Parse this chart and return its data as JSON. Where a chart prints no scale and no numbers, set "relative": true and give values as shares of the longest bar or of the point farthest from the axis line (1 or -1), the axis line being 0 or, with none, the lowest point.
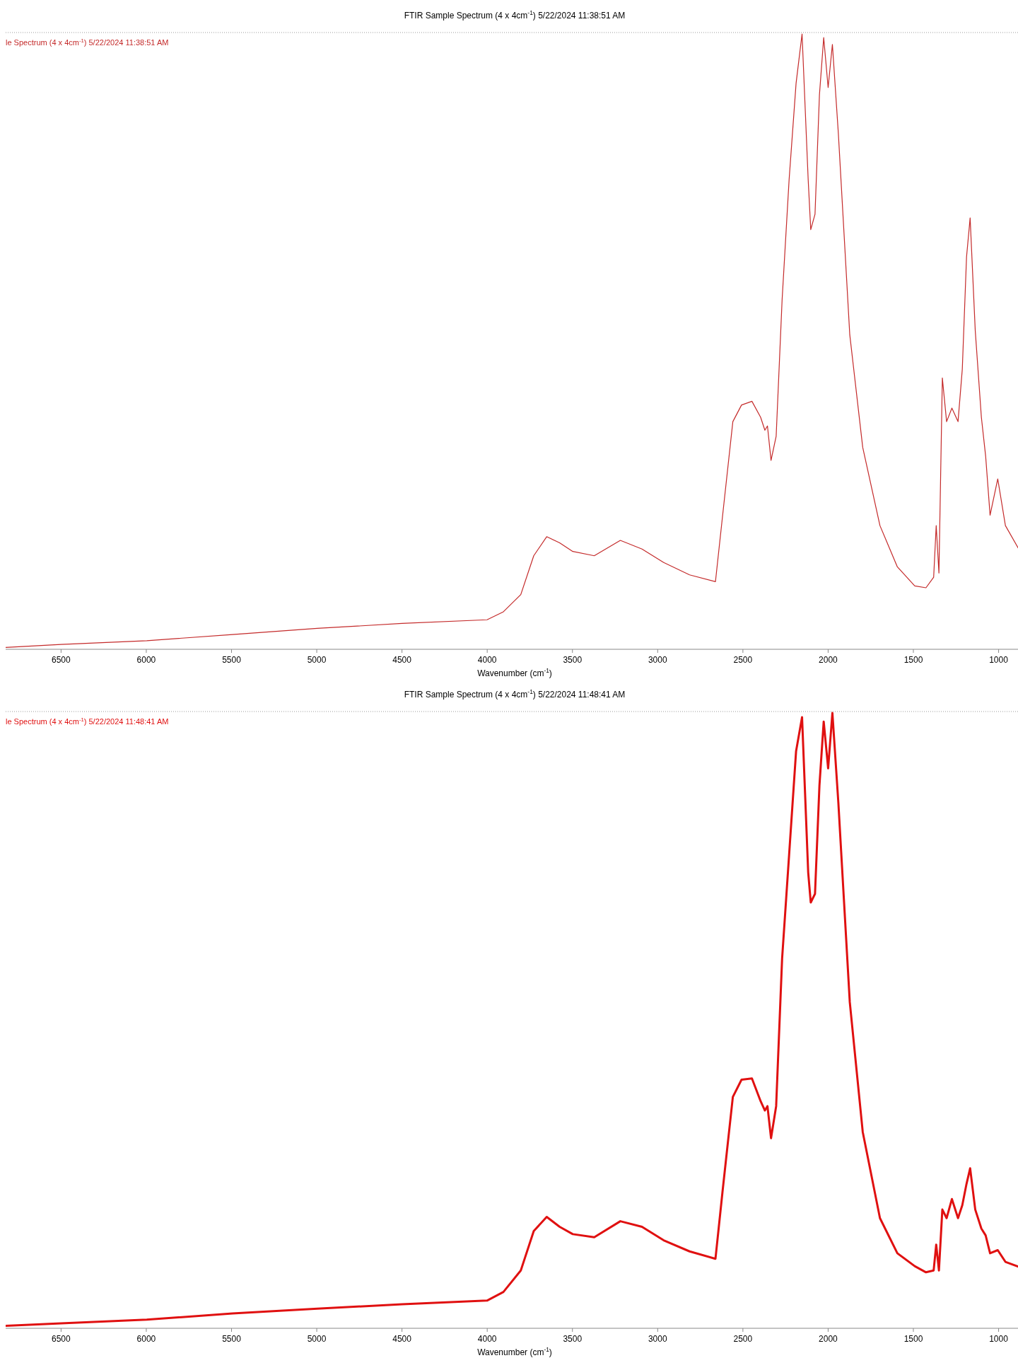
{
  "chart_data": [
    {
      "type": "line",
      "title": "FTIR Sample Spectrum (4 x 4cm$^{-1}$) 5/22/2024 11:38:51 AM",
      "xlabel": "Wavenumber (cm$^{-1}$)",
      "relative": true,
      "legend": "top left",
      "xlim": [
        6825,
        853
      ],
      "xticks": [
        6500,
        6000,
        5500,
        5000,
        4500,
        4000,
        3500,
        3000,
        2500,
        2000,
        1500,
        1000
      ],
      "x": [
        6825,
        6500,
        5997,
        5494,
        4997,
        4499,
        4001,
        3905,
        3803,
        3727,
        3651,
        3575,
        3498,
        3372,
        3219,
        3092,
        2965,
        2813,
        2661,
        2620,
        2559,
        2508,
        2447,
        2396,
        2371,
        2356,
        2335,
        2305,
        2270,
        2229,
        2188,
        2153,
        2117,
        2102,
        2077,
        2051,
        2026,
        2000,
        1975,
        1940,
        1873,
        1797,
        1696,
        1594,
        1492,
        1426,
        1381,
        1366,
        1350,
        1330,
        1305,
        1274,
        1238,
        1213,
        1188,
        1167,
        1137,
        1101,
        1076,
        1050,
        1005,
        960,
        853
      ],
      "series": [
        {
          "name": "le Spectrum (4 x 4cm$^{-1}$) 5/22/2024 11:38:51 AM",
          "color": "#c42a2a",
          "values": [
            0.003,
            0.008,
            0.014,
            0.024,
            0.034,
            0.042,
            0.048,
            0.061,
            0.089,
            0.152,
            0.183,
            0.173,
            0.159,
            0.152,
            0.177,
            0.163,
            0.141,
            0.121,
            0.11,
            0.215,
            0.37,
            0.397,
            0.403,
            0.377,
            0.356,
            0.363,
            0.307,
            0.346,
            0.568,
            0.763,
            0.92,
            1,
            0.763,
            0.682,
            0.707,
            0.901,
            0.994,
            0.913,
            0.983,
            0.838,
            0.511,
            0.328,
            0.201,
            0.134,
            0.103,
            0.1,
            0.117,
            0.201,
            0.124,
            0.441,
            0.37,
            0.392,
            0.37,
            0.455,
            0.638,
            0.701,
            0.518,
            0.377,
            0.314,
            0.218,
            0.277,
            0.201,
            0.149
          ]
        }
      ]
    },
    {
      "type": "line",
      "title": "FTIR Sample Spectrum (4 x 4cm$^{-1}$) 5/22/2024 11:48:41 AM",
      "xlabel": "Wavenumber (cm$^{-1}$)",
      "relative": true,
      "legend": "top left",
      "xlim": [
        6825,
        853
      ],
      "xticks": [
        6500,
        6000,
        5500,
        5000,
        4500,
        4000,
        3500,
        3000,
        2500,
        2000,
        1500,
        1000
      ],
      "x": [
        6825,
        6500,
        5997,
        5494,
        4997,
        4499,
        4001,
        3905,
        3803,
        3727,
        3651,
        3575,
        3498,
        3372,
        3219,
        3092,
        2965,
        2813,
        2661,
        2620,
        2559,
        2508,
        2447,
        2396,
        2371,
        2356,
        2335,
        2305,
        2270,
        2229,
        2188,
        2153,
        2117,
        2102,
        2077,
        2051,
        2026,
        2000,
        1975,
        1940,
        1873,
        1797,
        1696,
        1594,
        1492,
        1426,
        1381,
        1366,
        1350,
        1330,
        1305,
        1274,
        1238,
        1213,
        1188,
        1167,
        1137,
        1101,
        1076,
        1050,
        1005,
        960,
        853
      ],
      "series": [
        {
          "name": "le Spectrum (4 x 4cm$^{-1}$) 5/22/2024 11:48:41 AM",
          "color": "#e01010",
          "values": [
            0.004,
            0.008,
            0.014,
            0.024,
            0.032,
            0.039,
            0.045,
            0.059,
            0.094,
            0.158,
            0.181,
            0.165,
            0.153,
            0.148,
            0.174,
            0.165,
            0.143,
            0.125,
            0.113,
            0.221,
            0.376,
            0.404,
            0.406,
            0.369,
            0.354,
            0.361,
            0.309,
            0.361,
            0.601,
            0.769,
            0.938,
            0.993,
            0.741,
            0.692,
            0.706,
            0.882,
            0.986,
            0.91,
            1,
            0.854,
            0.53,
            0.319,
            0.179,
            0.122,
            0.101,
            0.091,
            0.094,
            0.136,
            0.094,
            0.193,
            0.179,
            0.21,
            0.179,
            0.2,
            0.235,
            0.26,
            0.193,
            0.162,
            0.151,
            0.122,
            0.127,
            0.108,
            0.097
          ]
        }
      ]
    }
  ]
}
